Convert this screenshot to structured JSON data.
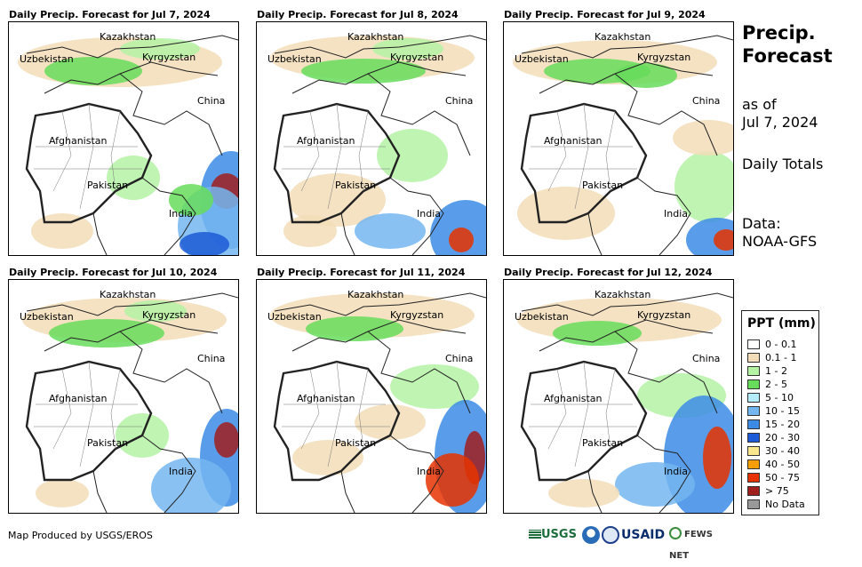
{
  "heading": {
    "line1": "Precip.",
    "line2": "Forecast"
  },
  "as_of": {
    "line1": "as of",
    "line2": "Jul 7, 2024"
  },
  "totals": "Daily Totals",
  "source": {
    "line1": "Data:",
    "line2": "NOAA-GFS"
  },
  "credit": "Map Produced by USGS/EROS",
  "place_labels": {
    "kazakhstan": "Kazakhstan",
    "uzbekistan": "Uzbekistan",
    "kyrgyzstan": "Kyrgyzstan",
    "china": "China",
    "afghanistan": "Afghanistan",
    "pakistan": "Pakistan",
    "india": "India"
  },
  "panels": [
    {
      "title": "Daily Precip. Forecast for Jul 7, 2024"
    },
    {
      "title": "Daily Precip. Forecast for Jul 8, 2024"
    },
    {
      "title": "Daily Precip. Forecast for Jul 9, 2024"
    },
    {
      "title": "Daily Precip. Forecast for Jul 10, 2024"
    },
    {
      "title": "Daily Precip. Forecast for Jul 11, 2024"
    },
    {
      "title": "Daily Precip. Forecast for Jul 12, 2024"
    }
  ],
  "legend": {
    "title": "PPT (mm)",
    "items": [
      {
        "label": "0 - 0.1",
        "color": "#ffffff"
      },
      {
        "label": "0.1 - 1",
        "color": "#f2ddb8"
      },
      {
        "label": "1 - 2",
        "color": "#b4f2a4"
      },
      {
        "label": "2 - 5",
        "color": "#66dc5a"
      },
      {
        "label": "5 - 10",
        "color": "#b4ecfa"
      },
      {
        "label": "10 - 15",
        "color": "#74b6f0"
      },
      {
        "label": "15 - 20",
        "color": "#3c8ce6"
      },
      {
        "label": "20 - 30",
        "color": "#1c5ad6"
      },
      {
        "label": "30 - 40",
        "color": "#fae68c"
      },
      {
        "label": "40 - 50",
        "color": "#f5a000"
      },
      {
        "label": "50 - 75",
        "color": "#e63200"
      },
      {
        "label": "> 75",
        "color": "#a01e1e"
      },
      {
        "label": "No Data",
        "color": "#999999"
      }
    ]
  },
  "logos": {
    "usgs": "USGS",
    "usaid": "USAID",
    "fewsnet": "FEWS NET"
  }
}
